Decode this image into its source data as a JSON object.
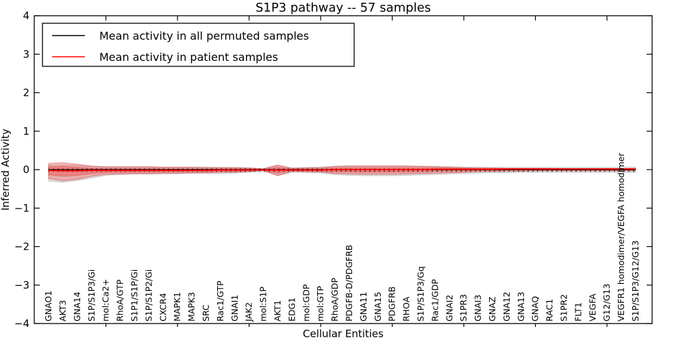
{
  "chart_data": {
    "type": "line",
    "title": "S1P3 pathway -- 57 samples",
    "xlabel": "Cellular Entities",
    "ylabel": "Inferred Activity",
    "ylim": [
      -4,
      4
    ],
    "yticks": [
      4,
      3,
      2,
      1,
      0,
      -1,
      -2,
      -3,
      -4
    ],
    "x_major_tick_every": 5,
    "grid": false,
    "legend_position": "upper left",
    "categories": [
      "GNAO1",
      "AKT3",
      "GNA14",
      "S1P/S1P3/Gi",
      "mol:Ca2+",
      "RhoA/GTP",
      "S1P1/S1P/Gi",
      "S1P/S1P2/Gi",
      "CXCR4",
      "MAPK1",
      "MAPK3",
      "SRC",
      "Rac1/GTP",
      "GNAI1",
      "JAK2",
      "mol:S1P",
      "AKT1",
      "EDG1",
      "mol:GDP",
      "mol:GTP",
      "RhoA/GDP",
      "PDGFB-D/PDGFRB",
      "GNA11",
      "GNA15",
      "PDGFRB",
      "RHOA",
      "S1P/S1P3/Gq",
      "Rac1/GDP",
      "GNAI2",
      "S1PR3",
      "GNAI3",
      "GNAZ",
      "GNA12",
      "GNA13",
      "GNAQ",
      "RAC1",
      "S1PR2",
      "FLT1",
      "VEGFA",
      "G12/G13",
      "VEGFR1 homodimer/VEGFA homodimer",
      "S1P/S1P3/G12/G13"
    ],
    "series": [
      {
        "name": "Mean activity in all permuted samples",
        "color": "#000000",
        "band_color": "rgba(0,0,0,0.13)",
        "mean": [
          0,
          0,
          0,
          0,
          0,
          0,
          0,
          0,
          0,
          0,
          0,
          0,
          0,
          0,
          0,
          0,
          0,
          0,
          0,
          0,
          0,
          0,
          0,
          0,
          0,
          0,
          0,
          0,
          0,
          0,
          0,
          0,
          0,
          0,
          0,
          0,
          0,
          0,
          0,
          0,
          0,
          0
        ],
        "band_upper": [
          0.12,
          0.13,
          0.11,
          0.09,
          0.08,
          0.08,
          0.08,
          0.08,
          0.07,
          0.07,
          0.07,
          0.07,
          0.06,
          0.06,
          0.05,
          0.03,
          0.11,
          0.05,
          0.06,
          0.07,
          0.09,
          0.1,
          0.1,
          0.1,
          0.1,
          0.1,
          0.09,
          0.09,
          0.08,
          0.07,
          0.07,
          0.06,
          0.06,
          0.06,
          0.06,
          0.06,
          0.06,
          0.06,
          0.06,
          0.06,
          0.06,
          0.07
        ],
        "band_lower": [
          -0.3,
          -0.33,
          -0.28,
          -0.22,
          -0.15,
          -0.13,
          -0.12,
          -0.12,
          -0.11,
          -0.11,
          -0.1,
          -0.1,
          -0.1,
          -0.09,
          -0.07,
          -0.04,
          -0.15,
          -0.07,
          -0.08,
          -0.09,
          -0.13,
          -0.15,
          -0.16,
          -0.16,
          -0.16,
          -0.15,
          -0.14,
          -0.13,
          -0.11,
          -0.1,
          -0.09,
          -0.08,
          -0.08,
          -0.07,
          -0.07,
          -0.07,
          -0.07,
          -0.07,
          -0.07,
          -0.07,
          -0.07,
          -0.08
        ]
      },
      {
        "name": "Mean activity in patient samples",
        "color": "#ff0000",
        "band_color": "rgba(255,0,0,0.22)",
        "band_inner_color": "rgba(255,0,0,0.25)",
        "band_edge_color": "rgba(220,50,50,0.55)",
        "mean": [
          -0.02,
          -0.03,
          -0.03,
          -0.02,
          -0.02,
          -0.02,
          -0.02,
          -0.02,
          -0.02,
          -0.02,
          -0.02,
          -0.02,
          -0.01,
          -0.01,
          -0.01,
          -0.01,
          -0.01,
          -0.01,
          -0.01,
          -0.01,
          0,
          0,
          0,
          0,
          0,
          0,
          0,
          0.01,
          0.01,
          0.01,
          0.01,
          0.01,
          0.02,
          0.02,
          0.02,
          0.02,
          0.02,
          0.02,
          0.02,
          0.02,
          0.02,
          0.02
        ],
        "band_upper": [
          0.16,
          0.18,
          0.14,
          0.09,
          0.07,
          0.07,
          0.07,
          0.07,
          0.06,
          0.06,
          0.06,
          0.05,
          0.05,
          0.05,
          0.04,
          0.02,
          0.12,
          0.03,
          0.04,
          0.05,
          0.08,
          0.09,
          0.09,
          0.09,
          0.09,
          0.09,
          0.08,
          0.07,
          0.06,
          0.05,
          0.04,
          0.04,
          0.03,
          0.03,
          0.03,
          0.03,
          0.02,
          0.02,
          0.02,
          0.02,
          0.02,
          0.03
        ],
        "band_lower": [
          -0.23,
          -0.29,
          -0.25,
          -0.17,
          -0.12,
          -0.11,
          -0.1,
          -0.1,
          -0.09,
          -0.09,
          -0.08,
          -0.08,
          -0.07,
          -0.07,
          -0.05,
          -0.02,
          -0.16,
          -0.04,
          -0.05,
          -0.06,
          -0.1,
          -0.11,
          -0.12,
          -0.12,
          -0.12,
          -0.11,
          -0.1,
          -0.09,
          -0.08,
          -0.07,
          -0.05,
          -0.05,
          -0.04,
          -0.04,
          -0.03,
          -0.03,
          -0.03,
          -0.03,
          -0.03,
          -0.03,
          -0.03,
          -0.03
        ]
      }
    ]
  }
}
